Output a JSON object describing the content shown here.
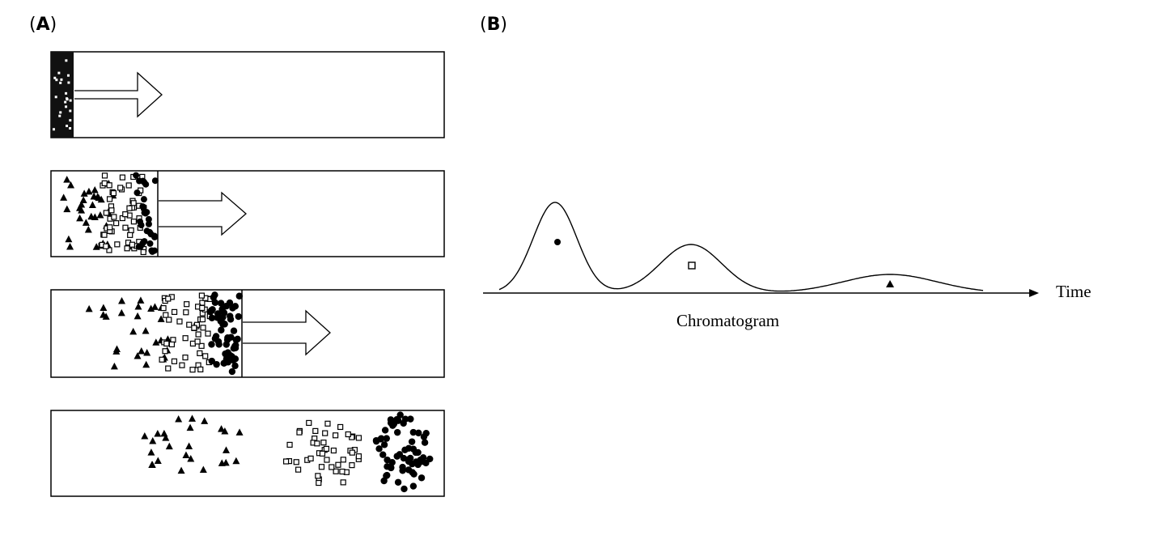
{
  "panels": {
    "a": {
      "open": "(",
      "letter": "A",
      "close": ")"
    },
    "b": {
      "open": "(",
      "letter": "B",
      "close": ")"
    }
  },
  "chromatogram": {
    "axis_label": "Time",
    "caption": "Chromatogram",
    "peaks": [
      {
        "marker": "dot",
        "relative_height": 1.0
      },
      {
        "marker": "square",
        "relative_height": 0.52
      },
      {
        "marker": "triangle",
        "relative_height": 0.19
      }
    ]
  },
  "columns": [
    {
      "stage": 1,
      "bands": [
        "mixed"
      ],
      "arrow": true
    },
    {
      "stage": 2,
      "bands": [
        "triangle",
        "square",
        "dot"
      ],
      "arrow": true
    },
    {
      "stage": 3,
      "bands": [
        "triangle",
        "square",
        "dot"
      ],
      "arrow": true
    },
    {
      "stage": 4,
      "bands": [
        "triangle",
        "square",
        "dot"
      ],
      "arrow": false
    }
  ]
}
